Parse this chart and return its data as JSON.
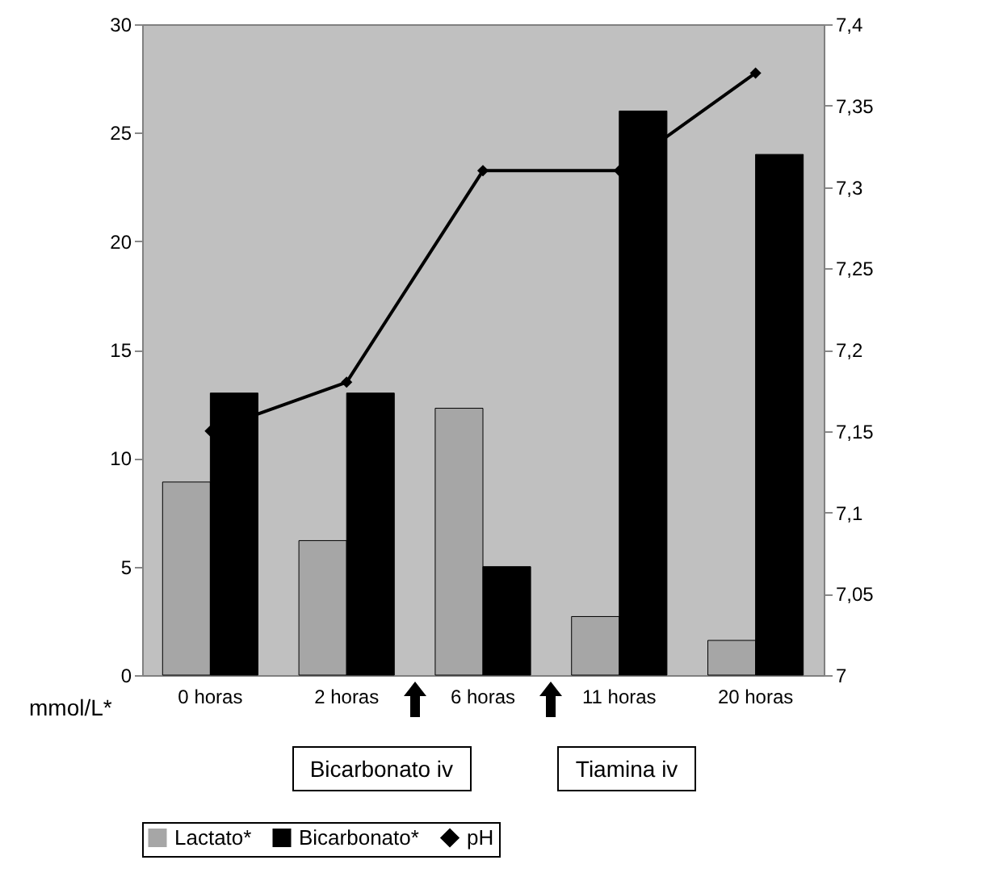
{
  "chart_data": {
    "type": "bar",
    "categories": [
      "0 horas",
      "2 horas",
      "6 horas",
      "11 horas",
      "20 horas"
    ],
    "series": [
      {
        "name": "Lactato*",
        "color": "#a6a6a6",
        "values": [
          8.9,
          6.2,
          12.3,
          2.7,
          1.6
        ]
      },
      {
        "name": "Bicarbonato*",
        "color": "#000000",
        "values": [
          13,
          13,
          5,
          26,
          24
        ]
      },
      {
        "name": "pH",
        "type": "line",
        "axis": "y2",
        "color": "#000000",
        "marker": "diamond",
        "values": [
          7.15,
          7.18,
          7.31,
          7.31,
          7.37
        ]
      }
    ],
    "ylim": [
      0,
      30
    ],
    "yticks": [
      0,
      5,
      10,
      15,
      20,
      25,
      30
    ],
    "y2lim": [
      7,
      7.4
    ],
    "y2ticks": [
      {
        "value": 7,
        "label": "7"
      },
      {
        "value": 7.05,
        "label": "7,05"
      },
      {
        "value": 7.1,
        "label": "7,1"
      },
      {
        "value": 7.15,
        "label": "7,15"
      },
      {
        "value": 7.2,
        "label": "7,2"
      },
      {
        "value": 7.25,
        "label": "7,25"
      },
      {
        "value": 7.3,
        "label": "7,3"
      },
      {
        "value": 7.35,
        "label": "7,35"
      },
      {
        "value": 7.4,
        "label": "7,4"
      }
    ],
    "grid": false,
    "legend": "bottom",
    "annotations": [
      "mmol/L*",
      "Bicarbonato iv",
      "Tiamina iv"
    ]
  }
}
